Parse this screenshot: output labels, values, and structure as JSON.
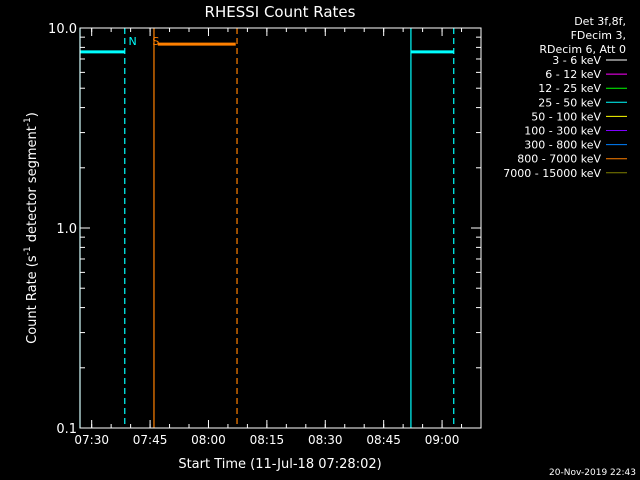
{
  "chart_data": {
    "type": "line",
    "title": "RHESSI Count Rates",
    "xlabel": "Start Time (11-Jul-18 07:28:02)",
    "ylabel_main": "Count Rate (s",
    "ylabel_sup1": "-1",
    "ylabel_mid": " detector segment",
    "ylabel_sup2": "-1",
    "ylabel_end": ")",
    "x_scale": "time",
    "y_scale": "log",
    "x_range": [
      "07:27:00",
      "09:10:00"
    ],
    "ylim": [
      0.1,
      10.0
    ],
    "x_ticks": [
      {
        "label": "07:30",
        "time": "07:30"
      },
      {
        "label": "07:45",
        "time": "07:45"
      },
      {
        "label": "08:00",
        "time": "08:00"
      },
      {
        "label": "08:15",
        "time": "08:15"
      },
      {
        "label": "08:30",
        "time": "08:30"
      },
      {
        "label": "08:45",
        "time": "08:45"
      },
      {
        "label": "09:00",
        "time": "09:00"
      }
    ],
    "y_ticks": [
      {
        "label": "0.1",
        "value": 0.1
      },
      {
        "label": "1.0",
        "value": 1.0
      },
      {
        "label": "10.0",
        "value": 10.0
      }
    ],
    "grid": false,
    "legend_position": "top-right outside",
    "legend_header": [
      "Det 3f,8f,",
      "FDecim 3,",
      "RDecim 6, Att 0"
    ],
    "legend": [
      {
        "label": "3 - 6 keV",
        "color": "#ffffff"
      },
      {
        "label": "6 - 12 keV",
        "color": "#ff00ff"
      },
      {
        "label": "12 - 25 keV",
        "color": "#00ff00"
      },
      {
        "label": "25 - 50 keV",
        "color": "#00ffff"
      },
      {
        "label": "50 - 100 keV",
        "color": "#ffff00"
      },
      {
        "label": "100 - 300 keV",
        "color": "#7f00ff"
      },
      {
        "label": "300 - 800 keV",
        "color": "#0080ff"
      },
      {
        "label": "800 - 7000 keV",
        "color": "#ff8000"
      },
      {
        "label": "7000 - 15000 keV",
        "color": "#808000"
      }
    ],
    "series": [
      {
        "name": "25 - 50 keV",
        "color": "#00ffff",
        "segments": [
          {
            "x": [
              "07:27:00",
              "07:38:30"
            ],
            "y": 7.6
          },
          {
            "x": [
              "08:52:00",
              "09:03:00"
            ],
            "y": 7.6
          }
        ]
      },
      {
        "name": "800 - 7000 keV",
        "color": "#ff8000",
        "segments": [
          {
            "x": [
              "07:47:00",
              "08:07:00"
            ],
            "y": 8.3
          }
        ]
      }
    ],
    "vlines": [
      {
        "time": "07:27:00",
        "style": "solid",
        "color": "#00ffff"
      },
      {
        "time": "07:38:30",
        "style": "dashed",
        "color": "#00ffff"
      },
      {
        "time": "07:46:00",
        "style": "solid",
        "color": "#ff8000"
      },
      {
        "time": "08:07:20",
        "style": "dashed",
        "color": "#ff8000"
      },
      {
        "time": "08:52:00",
        "style": "solid",
        "color": "#00ffff"
      },
      {
        "time": "09:03:00",
        "style": "dashed",
        "color": "#00ffff"
      }
    ],
    "annotations": [
      {
        "text": "N",
        "time": "07:40:30",
        "color": "#00ffff"
      },
      {
        "text": "S",
        "time": "07:46:30",
        "color": "#ff8000"
      }
    ],
    "footer_timestamp": "20-Nov-2019 22:43"
  }
}
